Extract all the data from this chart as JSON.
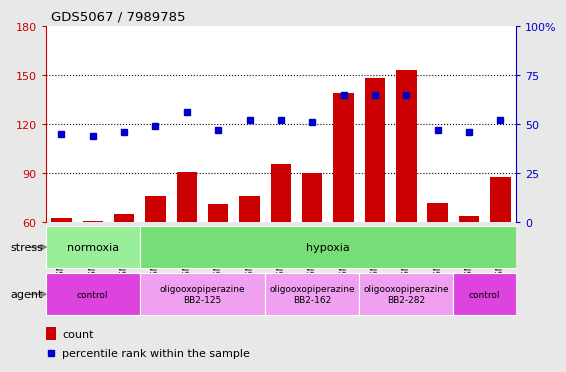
{
  "title": "GDS5067 / 7989785",
  "samples": [
    "GSM1169207",
    "GSM1169208",
    "GSM1169209",
    "GSM1169213",
    "GSM1169214",
    "GSM1169215",
    "GSM1169216",
    "GSM1169217",
    "GSM1169218",
    "GSM1169219",
    "GSM1169220",
    "GSM1169221",
    "GSM1169210",
    "GSM1169211",
    "GSM1169212"
  ],
  "counts": [
    63,
    61,
    65,
    76,
    91,
    71,
    76,
    96,
    90,
    139,
    148,
    153,
    72,
    64,
    88
  ],
  "percentiles": [
    45,
    44,
    46,
    49,
    56,
    47,
    52,
    52,
    51,
    65,
    65,
    65,
    47,
    46,
    52
  ],
  "bar_color": "#cc0000",
  "dot_color": "#0000cc",
  "left_ylim": [
    60,
    180
  ],
  "left_yticks": [
    60,
    90,
    120,
    150,
    180
  ],
  "right_ylim": [
    0,
    100
  ],
  "right_yticks": [
    0,
    25,
    50,
    75,
    100
  ],
  "right_yticklabels": [
    "0",
    "25",
    "50",
    "75",
    "100%"
  ],
  "grid_values": [
    90,
    120,
    150
  ],
  "stress_groups": [
    {
      "label": "normoxia",
      "start": 0,
      "end": 3,
      "color": "#99ee99"
    },
    {
      "label": "hypoxia",
      "start": 3,
      "end": 15,
      "color": "#77dd77"
    }
  ],
  "agent_groups": [
    {
      "label": "control",
      "start": 0,
      "end": 3,
      "color": "#dd44dd"
    },
    {
      "label": "oligooxopiperazine\nBB2-125",
      "start": 3,
      "end": 7,
      "color": "#f0a0f0"
    },
    {
      "label": "oligooxopiperazine\nBB2-162",
      "start": 7,
      "end": 10,
      "color": "#f0a0f0"
    },
    {
      "label": "oligooxopiperazine\nBB2-282",
      "start": 10,
      "end": 13,
      "color": "#f0a0f0"
    },
    {
      "label": "control",
      "start": 13,
      "end": 15,
      "color": "#dd44dd"
    }
  ],
  "background_color": "#e8e8e8",
  "plot_bg_color": "#ffffff"
}
